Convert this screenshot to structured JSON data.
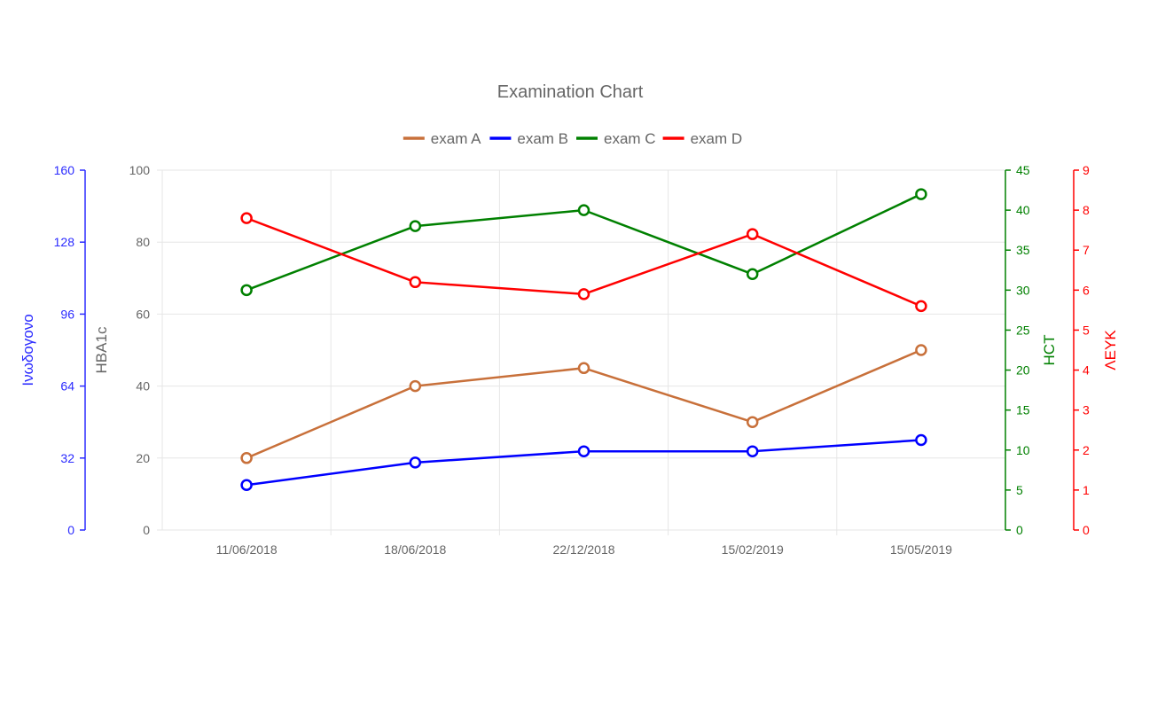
{
  "chart_data": {
    "type": "line",
    "title": "Examination Chart",
    "categories": [
      "11/06/2018",
      "18/06/2018",
      "22/12/2018",
      "15/02/2019",
      "15/05/2019"
    ],
    "legend_position": "top",
    "grid": true,
    "series": [
      {
        "name": "exam A",
        "color": "#c8703a",
        "axis": "hba1c",
        "values": [
          20,
          40,
          45,
          30,
          50
        ]
      },
      {
        "name": "exam B",
        "color": "#0000ff",
        "axis": "glucose",
        "values": [
          20,
          30,
          35,
          35,
          40
        ]
      },
      {
        "name": "exam C",
        "color": "#008000",
        "axis": "hct",
        "values": [
          30,
          38,
          40,
          32,
          42
        ]
      },
      {
        "name": "exam D",
        "color": "#ff0000",
        "axis": "leuk",
        "values": [
          7.8,
          6.2,
          5.9,
          7.4,
          5.6
        ]
      }
    ],
    "axes": {
      "glucose": {
        "label": "Ινωδογονο",
        "color": "#2b2bff",
        "min": 0,
        "max": 160,
        "ticks": [
          0,
          32,
          64,
          96,
          128,
          160
        ],
        "side": "left"
      },
      "hba1c": {
        "label": "HBA1c",
        "color": "#666666",
        "min": 0,
        "max": 100,
        "ticks": [
          0,
          20,
          40,
          60,
          80,
          100
        ],
        "side": "left"
      },
      "hct": {
        "label": "HCT",
        "color": "#008000",
        "min": 0,
        "max": 45,
        "ticks": [
          0,
          5,
          10,
          15,
          20,
          25,
          30,
          35,
          40,
          45
        ],
        "side": "right"
      },
      "leuk": {
        "label": "ΛΕΥΚ",
        "color": "#ff0000",
        "min": 0,
        "max": 9,
        "ticks": [
          0,
          1,
          2,
          3,
          4,
          5,
          6,
          7,
          8,
          9
        ],
        "side": "right"
      }
    }
  }
}
